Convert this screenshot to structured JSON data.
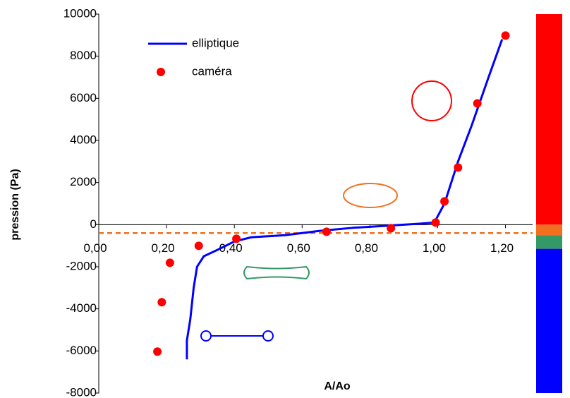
{
  "chart_data": {
    "type": "line",
    "xlabel": "A/Ao",
    "ylabel": "pression (Pa)",
    "xlim": [
      0,
      1.28
    ],
    "ylim": [
      -8000,
      10000
    ],
    "xticks": [
      {
        "value": 0,
        "label": "0,00"
      },
      {
        "value": 0.2,
        "label": "0,20"
      },
      {
        "value": 0.4,
        "label": "0,40"
      },
      {
        "value": 0.6,
        "label": "0,60"
      },
      {
        "value": 0.8,
        "label": "0,80"
      },
      {
        "value": 1,
        "label": "1,00"
      },
      {
        "value": 1.2,
        "label": "1,20"
      }
    ],
    "yticks": [
      -8000,
      -6000,
      -4000,
      -2000,
      0,
      2000,
      4000,
      6000,
      8000,
      10000
    ],
    "series": [
      {
        "name": "elliptique",
        "type": "line",
        "color": "#0000ff",
        "x": [
          0.26,
          0.26,
          0.27,
          0.28,
          0.29,
          0.31,
          0.35,
          0.4,
          0.45,
          0.55,
          0.65,
          0.75,
          0.85,
          0.95,
          0.99,
          1.02,
          1.06,
          1.1,
          1.15,
          1.19
        ],
        "values": [
          -6400,
          -5500,
          -4500,
          -3000,
          -2000,
          -1500,
          -1200,
          -800,
          -600,
          -500,
          -300,
          -150,
          -50,
          50,
          100,
          1000,
          3000,
          4700,
          7000,
          8800
        ]
      },
      {
        "name": "caméra",
        "type": "scatter",
        "color": "#ff0000",
        "x": [
          0.173,
          0.186,
          0.21,
          0.295,
          0.406,
          0.672,
          0.862,
          0.994,
          1.02,
          1.06,
          1.117,
          1.2
        ],
        "values": [
          -6030,
          -3685,
          -1810,
          -1005,
          -670,
          -335,
          -170,
          100,
          1105,
          2715,
          5760,
          8980
        ]
      }
    ],
    "reference_line": {
      "value": -400,
      "color": "#f07020"
    },
    "bands": [
      {
        "from": 0,
        "to": 10000,
        "color": "#ff0000"
      },
      {
        "from": -500,
        "to": 0,
        "color": "#f07020"
      },
      {
        "from": -1150,
        "to": -500,
        "color": "#339966"
      },
      {
        "from": -8000,
        "to": -1150,
        "color": "#0000ff"
      }
    ]
  }
}
